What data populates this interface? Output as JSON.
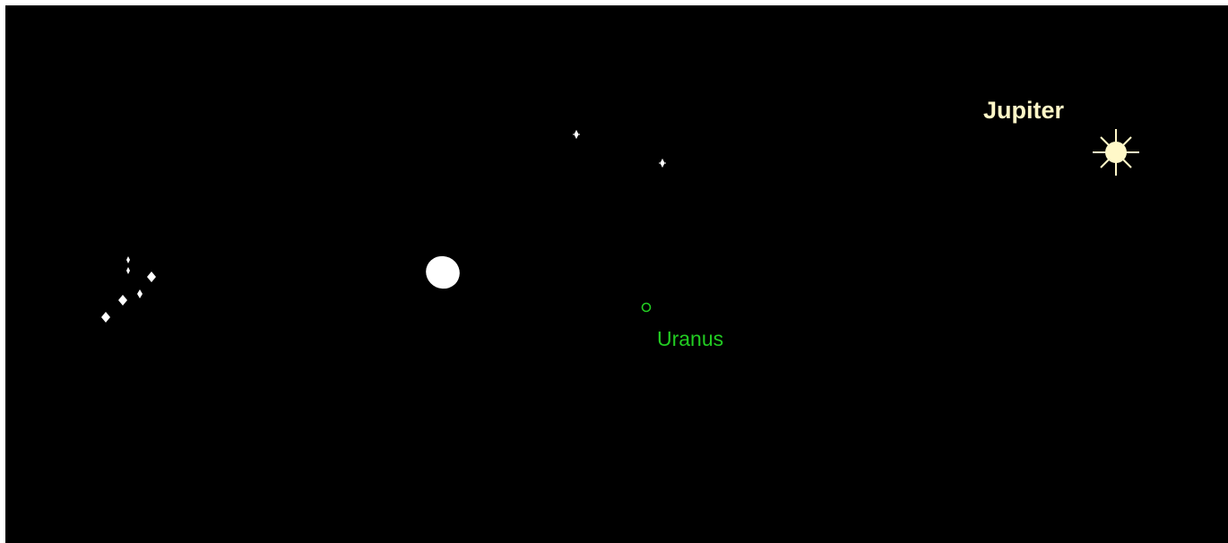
{
  "objects": {
    "jupiter": {
      "label": "Jupiter"
    },
    "uranus": {
      "label": "Uranus"
    }
  }
}
